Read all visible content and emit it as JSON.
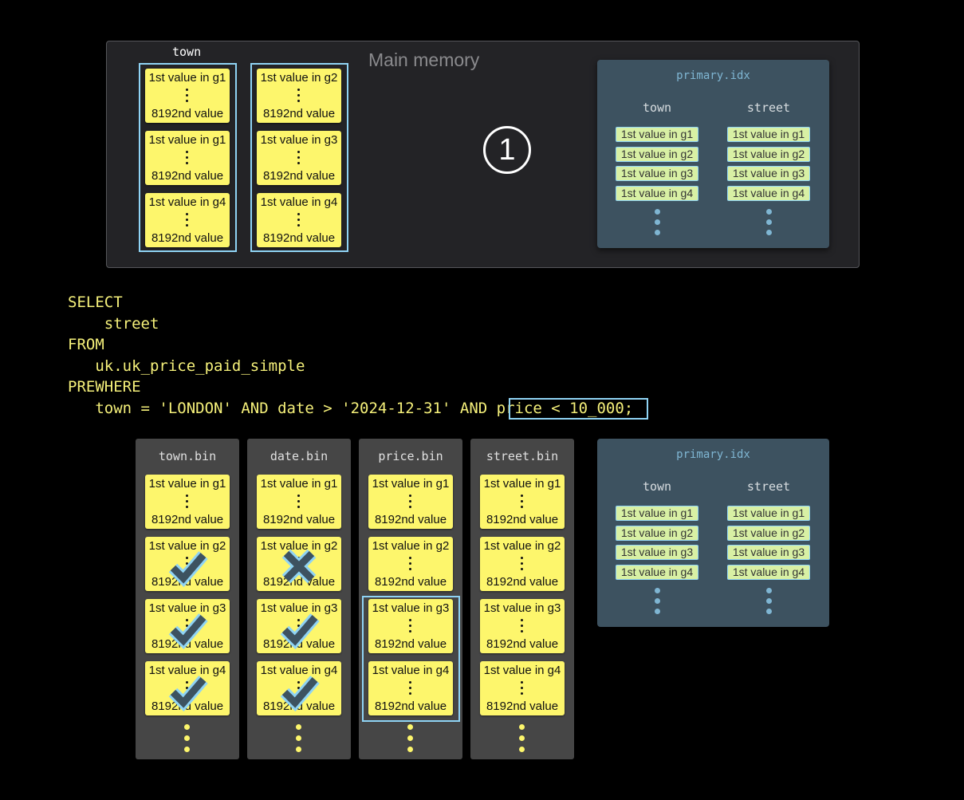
{
  "memory": {
    "label": "Main memory",
    "column_label": "town",
    "step": "1",
    "columns": [
      {
        "cards": [
          {
            "first": "1st value in g1",
            "last": "8192nd value"
          },
          {
            "first": "1st value in g1",
            "last": "8192nd value"
          },
          {
            "first": "1st value in g4",
            "last": "8192nd value"
          }
        ]
      },
      {
        "cards": [
          {
            "first": "1st value in g2",
            "last": "8192nd value"
          },
          {
            "first": "1st value in g3",
            "last": "8192nd value"
          },
          {
            "first": "1st value in g4",
            "last": "8192nd value"
          }
        ]
      }
    ]
  },
  "primary_index": {
    "title": "primary.idx",
    "columns": [
      {
        "name": "town",
        "entries": [
          "1st value in g1",
          "1st value in g2",
          "1st value in g3",
          "1st value in g4"
        ]
      },
      {
        "name": "street",
        "entries": [
          "1st value in g1",
          "1st value in g2",
          "1st value in g3",
          "1st value in g4"
        ]
      }
    ]
  },
  "sql": {
    "lines": [
      "SELECT",
      "    street",
      "FROM",
      "   uk.uk_price_paid_simple",
      "PREWHERE",
      "   town = 'LONDON' AND date > '2024-12-31' AND price < 10_000;"
    ],
    "highlight": "price < 10_000"
  },
  "files": [
    {
      "name": "town.bin",
      "marks": [
        "",
        "check",
        "check",
        "check"
      ]
    },
    {
      "name": "date.bin",
      "marks": [
        "",
        "cross",
        "check",
        "check"
      ]
    },
    {
      "name": "price.bin",
      "marks": [
        "",
        "",
        "",
        ""
      ],
      "highlighted_granules": [
        "g3",
        "g4"
      ]
    },
    {
      "name": "street.bin",
      "marks": [
        "",
        "",
        "",
        ""
      ]
    }
  ],
  "granules": [
    {
      "first": "1st value in g1",
      "last": "8192nd value"
    },
    {
      "first": "1st value in g2",
      "last": "8192nd value"
    },
    {
      "first": "1st value in g3",
      "last": "8192nd value"
    },
    {
      "first": "1st value in g4",
      "last": "8192nd value"
    }
  ],
  "colors": {
    "card": "#fdf66c",
    "highlight": "#8fd3f4",
    "index_bg": "#3d5260",
    "sql": "#f5f07a"
  }
}
